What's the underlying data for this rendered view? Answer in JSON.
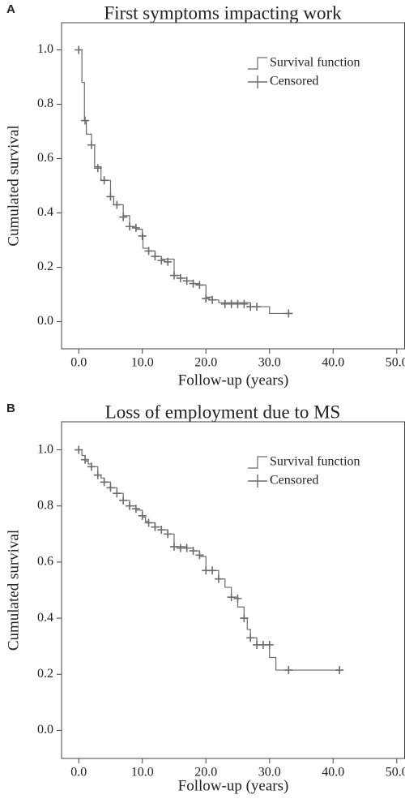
{
  "chart_data": [
    {
      "type": "step",
      "panel_label": "A",
      "title": "First symptoms impacting work",
      "xlabel": "Follow-up (years)",
      "ylabel": "Cumulated survival",
      "xlim": [
        -2.7,
        51.3
      ],
      "ylim": [
        -0.1,
        1.1
      ],
      "xticks": [
        {
          "value": 0,
          "label": "0.0"
        },
        {
          "value": 10,
          "label": "10.0"
        },
        {
          "value": 20,
          "label": "20.0"
        },
        {
          "value": 30,
          "label": "30.0"
        },
        {
          "value": 40,
          "label": "40.0"
        },
        {
          "value": 50,
          "label": "50.0"
        }
      ],
      "yticks": [
        {
          "value": 0,
          "label": "0.0"
        },
        {
          "value": 0.2,
          "label": "0.2"
        },
        {
          "value": 0.4,
          "label": "0.4"
        },
        {
          "value": 0.6,
          "label": "0.6"
        },
        {
          "value": 0.8,
          "label": "0.8"
        },
        {
          "value": 1,
          "label": "1.0"
        }
      ],
      "legend_position": "upper right",
      "series": [
        {
          "name": "Survival function",
          "style": "step",
          "color": "#6b6b6b",
          "x": [
            0,
            0.5,
            0.9,
            1.2,
            2,
            2.5,
            3.5,
            5,
            5.5,
            7,
            8,
            9,
            10,
            10.1,
            11,
            12,
            13,
            15,
            16,
            17,
            18,
            19,
            20,
            21,
            22,
            27,
            30,
            33
          ],
          "values": [
            1.0,
            0.88,
            0.74,
            0.69,
            0.65,
            0.57,
            0.52,
            0.46,
            0.43,
            0.39,
            0.35,
            0.34,
            0.32,
            0.27,
            0.26,
            0.24,
            0.23,
            0.17,
            0.16,
            0.15,
            0.14,
            0.135,
            0.09,
            0.08,
            0.07,
            0.055,
            0.03,
            0.03
          ]
        },
        {
          "name": "Censored",
          "style": "marker",
          "color": "#6b6b6b",
          "x": [
            0,
            1,
            2,
            3,
            4,
            5,
            6,
            7,
            8,
            9,
            10,
            11,
            12,
            13,
            14,
            15,
            16,
            17,
            18,
            19,
            20,
            21,
            23,
            24,
            25,
            26,
            27,
            28,
            33
          ],
          "values": [
            1.0,
            0.74,
            0.65,
            0.565,
            0.52,
            0.46,
            0.43,
            0.385,
            0.35,
            0.345,
            0.315,
            0.26,
            0.24,
            0.225,
            0.22,
            0.17,
            0.16,
            0.15,
            0.14,
            0.135,
            0.085,
            0.08,
            0.065,
            0.065,
            0.065,
            0.065,
            0.055,
            0.055,
            0.03
          ]
        }
      ]
    },
    {
      "type": "step",
      "panel_label": "B",
      "title": "Loss of employment due to MS",
      "xlabel": "Follow-up (years)",
      "ylabel": "Cumulated survival",
      "xlim": [
        -2.7,
        51.3
      ],
      "ylim": [
        -0.1,
        1.1
      ],
      "xticks": [
        {
          "value": 0,
          "label": "0.0"
        },
        {
          "value": 10,
          "label": "10.0"
        },
        {
          "value": 20,
          "label": "20.0"
        },
        {
          "value": 30,
          "label": "30.0"
        },
        {
          "value": 40,
          "label": "40.0"
        },
        {
          "value": 50,
          "label": "50.0"
        }
      ],
      "yticks": [
        {
          "value": 0,
          "label": "0.0"
        },
        {
          "value": 0.2,
          "label": "0.2"
        },
        {
          "value": 0.4,
          "label": "0.4"
        },
        {
          "value": 0.6,
          "label": "0.6"
        },
        {
          "value": 0.8,
          "label": "0.8"
        },
        {
          "value": 1,
          "label": "1.0"
        }
      ],
      "legend_position": "upper right",
      "series": [
        {
          "name": "Survival function",
          "style": "step",
          "color": "#6b6b6b",
          "x": [
            0,
            0.5,
            1,
            1.5,
            2,
            3,
            3.5,
            4,
            5,
            6,
            7,
            8,
            9,
            10,
            10.5,
            11,
            12,
            13,
            14,
            15,
            17,
            18,
            19,
            20,
            22,
            23,
            24,
            25,
            26,
            26.5,
            27,
            28,
            30,
            31,
            41
          ],
          "values": [
            1.0,
            0.98,
            0.96,
            0.95,
            0.94,
            0.91,
            0.9,
            0.885,
            0.865,
            0.845,
            0.82,
            0.8,
            0.785,
            0.76,
            0.745,
            0.74,
            0.725,
            0.715,
            0.7,
            0.655,
            0.65,
            0.64,
            0.62,
            0.57,
            0.54,
            0.51,
            0.475,
            0.44,
            0.4,
            0.36,
            0.33,
            0.305,
            0.26,
            0.215,
            0.215
          ]
        },
        {
          "name": "Censored",
          "style": "marker",
          "color": "#6b6b6b",
          "x": [
            0,
            1,
            2,
            3,
            4,
            5,
            6,
            7,
            8,
            9,
            10,
            11,
            12,
            13,
            14,
            15,
            16,
            17,
            18,
            19,
            20,
            21,
            22,
            24,
            25,
            26,
            27,
            28,
            29,
            30,
            33,
            41
          ],
          "values": [
            1.0,
            0.965,
            0.94,
            0.91,
            0.885,
            0.865,
            0.845,
            0.82,
            0.8,
            0.79,
            0.765,
            0.74,
            0.725,
            0.715,
            0.7,
            0.655,
            0.65,
            0.65,
            0.64,
            0.625,
            0.57,
            0.57,
            0.54,
            0.475,
            0.47,
            0.4,
            0.33,
            0.305,
            0.305,
            0.305,
            0.215,
            0.215
          ]
        }
      ]
    }
  ]
}
